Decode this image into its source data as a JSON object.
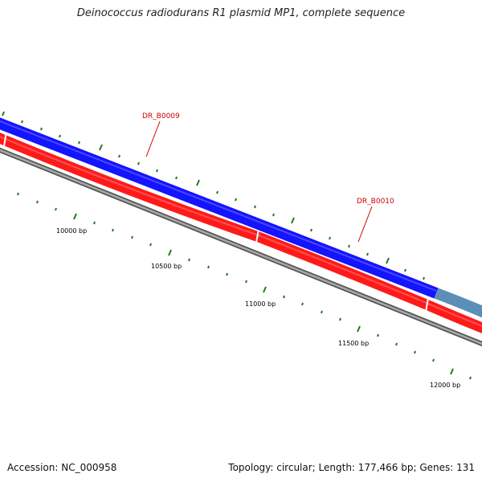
{
  "title": "Deinococcus radiodurans R1 plasmid MP1, complete sequence",
  "footer": {
    "accession": "Accession: NC_000958",
    "summary": "Topology: circular; Length: 177,466 bp; Genes: 131"
  },
  "colors": {
    "forward_gene": "#1a1aff",
    "forward_gene_alt": "#5b8fb8",
    "reverse_gene": "#ff1a1a",
    "backbone": "#808080",
    "tick": "#1e7a1e",
    "gene_label": "#cc0000"
  },
  "scale_labels": [
    "10000 bp",
    "10500 bp",
    "11000 bp",
    "11500 bp",
    "12000 bp"
  ],
  "gene_labels": [
    "DR_B0009",
    "DR_B0010"
  ]
}
